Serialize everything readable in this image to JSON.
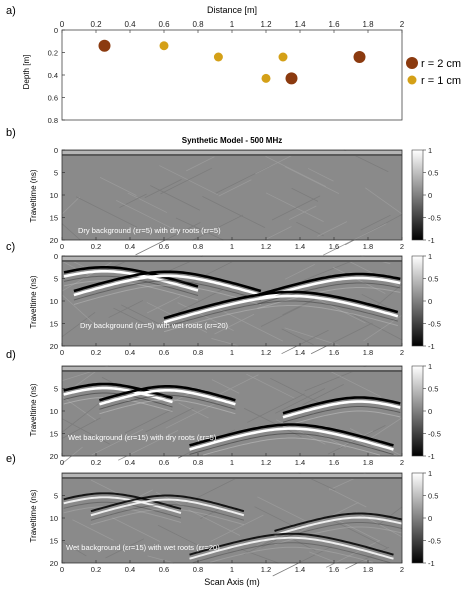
{
  "chart_data": [
    {
      "type": "scatter",
      "panel_label": "a)",
      "title": "",
      "xlabel": "Distance [m]",
      "ylabel": "Depth [m]",
      "xlim": [
        0,
        2
      ],
      "ylim": [
        0.8,
        0
      ],
      "x_ticks": [
        0,
        0.2,
        0.4,
        0.6,
        0.8,
        1,
        1.2,
        1.4,
        1.6,
        1.8,
        2
      ],
      "y_ticks": [
        0,
        0.2,
        0.4,
        0.6,
        0.8
      ],
      "x_axis_position": "top",
      "grid": false,
      "legend_position": "right",
      "series": [
        {
          "name": "r = 2 cm",
          "color": "#8b3a0f",
          "x": [
            0.25,
            1.35,
            1.75
          ],
          "y": [
            0.14,
            0.43,
            0.24
          ]
        },
        {
          "name": "r = 1 cm",
          "color": "#d4a017",
          "x": [
            0.6,
            0.92,
            1.2,
            1.3
          ],
          "y": [
            0.14,
            0.24,
            0.43,
            0.24
          ]
        }
      ]
    },
    {
      "type": "heatmap",
      "panel_label": "b)",
      "title": "Synthetic Model - 500 MHz",
      "annotation": "Dry background (εr=5) with dry roots (εr=5)",
      "xlabel": "",
      "ylabel": "Traveltime (ns)",
      "xlim": [
        0,
        2
      ],
      "ylim": [
        20,
        0
      ],
      "x_ticks": [
        0,
        0.2,
        0.4,
        0.6,
        0.8,
        1,
        1.2,
        1.4,
        1.6,
        1.8,
        2
      ],
      "y_ticks": [
        0,
        5,
        10,
        15,
        20
      ],
      "colorbar": {
        "range": [
          -1,
          1
        ],
        "ticks": [
          1,
          0.5,
          0,
          -0.5,
          -1
        ]
      },
      "hyperbolas": [],
      "hyperbola_amplitude": 0.1,
      "ringing": 0.0
    },
    {
      "type": "heatmap",
      "panel_label": "c)",
      "title": "",
      "annotation": "Dry background (εr=5) with wet roots (εr=20)",
      "xlabel": "",
      "ylabel": "Traveltime (ns)",
      "xlim": [
        0,
        2
      ],
      "ylim": [
        20,
        0
      ],
      "x_ticks": [
        0,
        0.2,
        0.4,
        0.6,
        0.8,
        1,
        1.2,
        1.4,
        1.6,
        1.8,
        2
      ],
      "y_ticks": [
        0,
        5,
        10,
        15,
        20
      ],
      "colorbar": {
        "range": [
          -1,
          1
        ],
        "ticks": [
          1,
          0.5,
          0,
          -0.5,
          -1
        ]
      },
      "hyperbolas": [
        {
          "x0": 0.25,
          "t0": 2.5,
          "width": 0.55
        },
        {
          "x0": 0.62,
          "t0": 3.5,
          "width": 0.55
        },
        {
          "x0": 1.75,
          "t0": 4.0,
          "width": 0.6
        },
        {
          "x0": 1.35,
          "t0": 8.0,
          "width": 0.75
        }
      ],
      "hyperbola_amplitude": 1.0,
      "ringing": 0.2
    },
    {
      "type": "heatmap",
      "panel_label": "d)",
      "title": "",
      "annotation": "Wet background (εr=15) with dry roots (εr=5)",
      "xlabel": "",
      "ylabel": "Traveltime (ns)",
      "xlim": [
        0,
        2
      ],
      "ylim": [
        20,
        0
      ],
      "x_ticks": [
        0,
        0.2,
        0.4,
        0.6,
        0.8,
        1,
        1.2,
        1.4,
        1.6,
        1.8,
        2
      ],
      "y_ticks": [
        5,
        10,
        15,
        20
      ],
      "colorbar": {
        "range": [
          -1,
          1
        ],
        "ticks": [
          1,
          0.5,
          0,
          -0.5,
          -1
        ]
      },
      "hyperbolas": [
        {
          "x0": 0.25,
          "t0": 4.0,
          "width": 0.4
        },
        {
          "x0": 0.62,
          "t0": 4.5,
          "width": 0.4
        },
        {
          "x0": 1.75,
          "t0": 7.0,
          "width": 0.45
        },
        {
          "x0": 1.35,
          "t0": 13.0,
          "width": 0.6
        }
      ],
      "hyperbola_amplitude": 1.0,
      "ringing": 0.3
    },
    {
      "type": "heatmap",
      "panel_label": "e)",
      "title": "",
      "annotation": "Wet background (εr=15) with wet roots (εr=20)",
      "xlabel": "Scan Axis (m)",
      "ylabel": "Traveltime (ns)",
      "xlim": [
        0,
        2
      ],
      "ylim": [
        20,
        0
      ],
      "x_ticks": [
        0,
        0.2,
        0.4,
        0.6,
        0.8,
        1,
        1.2,
        1.4,
        1.6,
        1.8,
        2
      ],
      "y_ticks": [
        5,
        10,
        15,
        20
      ],
      "colorbar": {
        "range": [
          -1,
          1
        ],
        "ticks": [
          1,
          0.5,
          0,
          -0.5,
          -1
        ]
      },
      "hyperbolas": [
        {
          "x0": 0.25,
          "t0": 4.5,
          "width": 0.45
        },
        {
          "x0": 0.62,
          "t0": 5.0,
          "width": 0.45
        },
        {
          "x0": 1.75,
          "t0": 9.0,
          "width": 0.5
        },
        {
          "x0": 1.35,
          "t0": 13.5,
          "width": 0.6
        }
      ],
      "hyperbola_amplitude": 0.55,
      "ringing": 0.1
    }
  ]
}
